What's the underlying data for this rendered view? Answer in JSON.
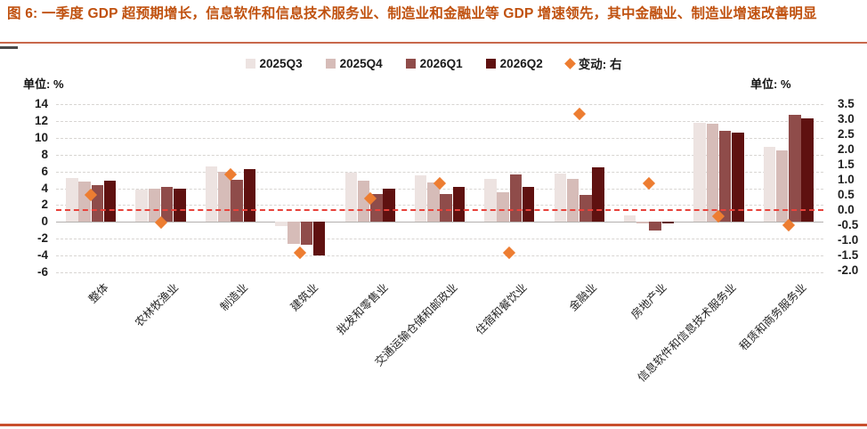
{
  "figure": {
    "title": "图 6: 一季度 GDP 超预期增长，信息软件和信息技术服务业、制造业和金融业等 GDP 增速领先，其中金融业、制造业增速改善明显",
    "unit_left": "单位: %",
    "unit_right": "单位: %"
  },
  "chart_data": {
    "type": "bar",
    "title": "一季度各行业GDP增速",
    "categories": [
      "整体",
      "农林牧渔业",
      "制造业",
      "建筑业",
      "批发和零售业",
      "交通运输仓储和邮政业",
      "住宿和餐饮业",
      "金融业",
      "房地产业",
      "信息软件和信息技术服务业",
      "租赁和商务服务业"
    ],
    "series": [
      {
        "name": "2025Q3",
        "axis": "left",
        "color": "#EDE3E1",
        "values": [
          5.2,
          3.8,
          6.6,
          -0.5,
          5.9,
          5.5,
          5.1,
          5.8,
          0.8,
          11.8,
          8.9
        ]
      },
      {
        "name": "2025Q4",
        "axis": "left",
        "color": "#D6BCB8",
        "values": [
          4.8,
          4.0,
          6.0,
          -2.6,
          4.9,
          4.7,
          3.5,
          5.1,
          -0.2,
          11.7,
          8.5
        ]
      },
      {
        "name": "2026Q1",
        "axis": "left",
        "color": "#8F4C4A",
        "values": [
          4.4,
          4.2,
          5.0,
          -2.7,
          3.3,
          3.3,
          5.6,
          3.2,
          -1.0,
          10.8,
          12.8
        ]
      },
      {
        "name": "2026Q2",
        "axis": "left",
        "color": "#5F1110",
        "values": [
          4.9,
          3.9,
          6.3,
          -4.0,
          4.0,
          4.2,
          4.2,
          6.5,
          -0.2,
          10.6,
          12.3
        ]
      }
    ],
    "scatter_series": {
      "name": "变动: 右",
      "axis": "right",
      "marker": "diamond",
      "color": "#ED7D31",
      "values": [
        0.5,
        -0.4,
        1.2,
        -1.4,
        0.4,
        0.9,
        -1.4,
        3.2,
        0.9,
        -0.2,
        -0.5
      ]
    },
    "left_axis": {
      "unit": "单位: %",
      "min": -6,
      "max": 14,
      "tick_labels": [
        "14",
        "12",
        "10",
        "8",
        "6",
        "4",
        "2",
        "0",
        "-2",
        "-4",
        "-6"
      ],
      "tick_values": [
        14,
        12,
        10,
        8,
        6,
        4,
        2,
        0,
        -2,
        -4,
        -6
      ]
    },
    "right_axis": {
      "unit": "单位: %",
      "min": -2.0,
      "max": 3.5,
      "tick_labels": [
        "3.5",
        "3.0",
        "2.5",
        "2.0",
        "1.5",
        "1.0",
        "0.5",
        "0.0",
        "-0.5",
        "-1.0",
        "-1.5",
        "-2.0"
      ],
      "tick_values": [
        3.5,
        3.0,
        2.5,
        2.0,
        1.5,
        1.0,
        0.5,
        0.0,
        -0.5,
        -1.0,
        -1.5,
        -2.0
      ]
    },
    "reference_line": {
      "axis": "right",
      "value": 0.0,
      "style": "dashed",
      "color": "#E8423B"
    },
    "grid": true,
    "legend_position": "top"
  }
}
